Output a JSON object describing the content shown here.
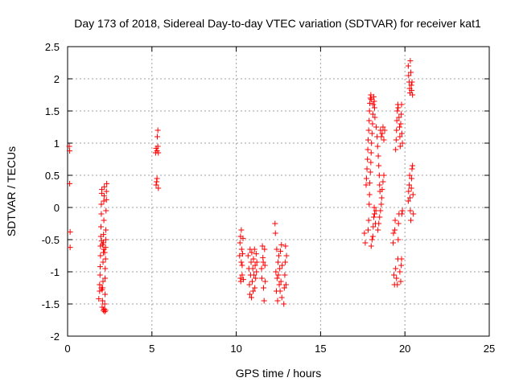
{
  "chart_data": {
    "type": "scatter",
    "title": "Day 173 of 2018, Sidereal Day-to-day VTEC variation (SDTVAR) for receiver kat1",
    "xlabel": "GPS time / hours",
    "ylabel": "SDTVAR / TECUs",
    "xlim": [
      0,
      25
    ],
    "ylim": [
      -2,
      2.5
    ],
    "x_ticks": [
      "0",
      "5",
      "10",
      "15",
      "20",
      "25"
    ],
    "y_ticks": [
      "-2",
      "-1.5",
      "-1",
      "-0.5",
      "0",
      "0.5",
      "1",
      "1.5",
      "2",
      "2.5"
    ],
    "grid": true,
    "marker": "plus",
    "color": "#ff0000",
    "series": [
      {
        "name": "SDTVAR",
        "points": [
          [
            0.1,
            0.95
          ],
          [
            0.12,
            0.88
          ],
          [
            0.12,
            0.37
          ],
          [
            0.15,
            -0.38
          ],
          [
            0.15,
            -0.62
          ],
          [
            1.85,
            -1.42
          ],
          [
            1.9,
            -1.3
          ],
          [
            1.9,
            -1.2
          ],
          [
            1.92,
            -1.05
          ],
          [
            1.93,
            -0.92
          ],
          [
            1.95,
            -0.75
          ],
          [
            1.95,
            -0.6
          ],
          [
            1.97,
            -0.45
          ],
          [
            1.98,
            -0.3
          ],
          [
            2.0,
            -0.1
          ],
          [
            2.0,
            0.05
          ],
          [
            2.02,
            0.22
          ],
          [
            2.03,
            0.28
          ],
          [
            2.05,
            -1.55
          ],
          [
            2.07,
            -1.45
          ],
          [
            2.08,
            -1.25
          ],
          [
            2.1,
            -1.15
          ],
          [
            2.1,
            -0.85
          ],
          [
            2.12,
            -0.7
          ],
          [
            2.12,
            -0.55
          ],
          [
            2.13,
            -0.42
          ],
          [
            2.15,
            -0.2
          ],
          [
            2.15,
            0.1
          ],
          [
            2.17,
            0.18
          ],
          [
            2.18,
            0.32
          ],
          [
            2.2,
            -1.62
          ],
          [
            2.2,
            -1.5
          ],
          [
            2.22,
            -1.35
          ],
          [
            2.22,
            -1.1
          ],
          [
            2.23,
            -0.95
          ],
          [
            2.25,
            -0.8
          ],
          [
            2.25,
            -0.62
          ],
          [
            2.27,
            -0.5
          ],
          [
            2.27,
            -0.35
          ],
          [
            2.28,
            -0.05
          ],
          [
            2.3,
            0.12
          ],
          [
            2.3,
            0.25
          ],
          [
            2.32,
            0.37
          ],
          [
            2.12,
            -1.6
          ],
          [
            2.18,
            -1.58
          ],
          [
            2.25,
            -1.6
          ],
          [
            2.02,
            -0.52
          ],
          [
            2.08,
            -0.58
          ],
          [
            2.15,
            -0.65
          ],
          [
            2.2,
            -0.7
          ],
          [
            2.0,
            -1.25
          ],
          [
            2.05,
            -1.28
          ],
          [
            5.22,
            0.85
          ],
          [
            5.25,
            0.92
          ],
          [
            5.25,
            0.35
          ],
          [
            5.28,
            0.4
          ],
          [
            5.3,
            0.88
          ],
          [
            5.3,
            0.45
          ],
          [
            5.32,
            1.1
          ],
          [
            5.35,
            1.2
          ],
          [
            5.35,
            0.95
          ],
          [
            5.38,
            0.3
          ],
          [
            5.38,
            0.85
          ],
          [
            10.2,
            -0.75
          ],
          [
            10.22,
            -0.55
          ],
          [
            10.25,
            -0.45
          ],
          [
            10.25,
            -1.1
          ],
          [
            10.27,
            -1.15
          ],
          [
            10.3,
            -0.85
          ],
          [
            10.3,
            -0.35
          ],
          [
            10.32,
            -0.65
          ],
          [
            10.35,
            -0.9
          ],
          [
            10.35,
            -1.05
          ],
          [
            10.38,
            -0.72
          ],
          [
            10.4,
            -0.48
          ],
          [
            10.42,
            -1.12
          ],
          [
            10.7,
            -0.75
          ],
          [
            10.75,
            -0.95
          ],
          [
            10.78,
            -1.2
          ],
          [
            10.8,
            -1.35
          ],
          [
            10.82,
            -0.65
          ],
          [
            10.85,
            -1.05
          ],
          [
            10.88,
            -0.85
          ],
          [
            10.9,
            -1.4
          ],
          [
            10.92,
            -0.7
          ],
          [
            10.95,
            -1.15
          ],
          [
            10.98,
            -0.95
          ],
          [
            11.0,
            -1.3
          ],
          [
            11.02,
            -0.8
          ],
          [
            11.05,
            -1.05
          ],
          [
            11.08,
            -0.65
          ],
          [
            11.1,
            -1.25
          ],
          [
            11.12,
            -0.9
          ],
          [
            11.15,
            -1.1
          ],
          [
            11.18,
            -0.72
          ],
          [
            11.2,
            -1.0
          ],
          [
            11.22,
            -0.85
          ],
          [
            11.5,
            -0.95
          ],
          [
            11.52,
            -1.1
          ],
          [
            11.55,
            -0.6
          ],
          [
            11.58,
            -0.78
          ],
          [
            11.6,
            -0.85
          ],
          [
            11.62,
            -1.25
          ],
          [
            11.65,
            -1.45
          ],
          [
            11.68,
            -0.65
          ],
          [
            11.7,
            -0.9
          ],
          [
            11.72,
            -1.15
          ],
          [
            12.3,
            -0.25
          ],
          [
            12.32,
            -0.4
          ],
          [
            12.35,
            -1.0
          ],
          [
            12.38,
            -1.3
          ],
          [
            12.4,
            -0.65
          ],
          [
            12.42,
            -1.1
          ],
          [
            12.45,
            -1.45
          ],
          [
            12.48,
            -0.85
          ],
          [
            12.5,
            -1.05
          ],
          [
            12.52,
            -0.75
          ],
          [
            12.55,
            -1.2
          ],
          [
            12.58,
            -0.95
          ],
          [
            12.6,
            -1.3
          ],
          [
            12.62,
            -0.68
          ],
          [
            12.65,
            -1.15
          ],
          [
            12.68,
            -0.58
          ],
          [
            12.7,
            -1.4
          ],
          [
            12.72,
            -0.9
          ],
          [
            12.82,
            -1.5
          ],
          [
            12.85,
            -1.25
          ],
          [
            12.88,
            -1.05
          ],
          [
            12.9,
            -0.85
          ],
          [
            12.92,
            -0.6
          ],
          [
            12.95,
            -1.2
          ],
          [
            12.98,
            -0.75
          ],
          [
            17.6,
            -0.4
          ],
          [
            17.65,
            -0.55
          ],
          [
            17.7,
            0.35
          ],
          [
            17.72,
            0.45
          ],
          [
            17.75,
            0.6
          ],
          [
            17.78,
            0.75
          ],
          [
            17.8,
            0.9
          ],
          [
            17.82,
            1.05
          ],
          [
            17.85,
            1.2
          ],
          [
            17.88,
            1.35
          ],
          [
            17.9,
            1.5
          ],
          [
            17.92,
            1.62
          ],
          [
            17.95,
            1.7
          ],
          [
            17.98,
            1.75
          ],
          [
            18.0,
            1.68
          ],
          [
            17.82,
            -0.35
          ],
          [
            17.85,
            -0.2
          ],
          [
            17.88,
            0.05
          ],
          [
            17.9,
            0.2
          ],
          [
            17.92,
            0.38
          ],
          [
            17.95,
            0.55
          ],
          [
            17.98,
            0.7
          ],
          [
            18.0,
            0.85
          ],
          [
            18.02,
            1.0
          ],
          [
            18.05,
            1.15
          ],
          [
            18.08,
            1.3
          ],
          [
            18.1,
            1.45
          ],
          [
            18.12,
            1.6
          ],
          [
            18.15,
            1.72
          ],
          [
            18.18,
            1.65
          ],
          [
            18.2,
            1.55
          ],
          [
            18.22,
            1.4
          ],
          [
            18.0,
            -0.6
          ],
          [
            18.05,
            -0.5
          ],
          [
            18.1,
            -0.45
          ],
          [
            18.12,
            -0.3
          ],
          [
            18.15,
            -0.15
          ],
          [
            18.18,
            0.0
          ],
          [
            18.2,
            -0.1
          ],
          [
            18.25,
            -0.25
          ],
          [
            18.28,
            -0.05
          ],
          [
            18.3,
            1.25
          ],
          [
            18.35,
            1.1
          ],
          [
            18.38,
            0.95
          ],
          [
            18.42,
            0.8
          ],
          [
            18.45,
            0.65
          ],
          [
            18.48,
            0.5
          ],
          [
            18.5,
            0.35
          ],
          [
            18.52,
            0.25
          ],
          [
            18.4,
            -0.35
          ],
          [
            18.45,
            -0.25
          ],
          [
            18.5,
            -0.15
          ],
          [
            18.55,
            -0.05
          ],
          [
            18.6,
            0.05
          ],
          [
            18.62,
            0.15
          ],
          [
            18.65,
            0.28
          ],
          [
            18.7,
            0.4
          ],
          [
            18.75,
            0.5
          ],
          [
            18.55,
            1.2
          ],
          [
            18.6,
            1.1
          ],
          [
            18.65,
            1.15
          ],
          [
            18.7,
            1.25
          ],
          [
            18.75,
            1.05
          ],
          [
            18.8,
            1.2
          ],
          [
            19.3,
            -0.55
          ],
          [
            19.32,
            -0.4
          ],
          [
            19.35,
            -1.05
          ],
          [
            19.38,
            -1.2
          ],
          [
            19.4,
            -0.35
          ],
          [
            19.42,
            -0.2
          ],
          [
            19.45,
            0.9
          ],
          [
            19.48,
            1.05
          ],
          [
            19.5,
            1.2
          ],
          [
            19.52,
            1.35
          ],
          [
            19.55,
            1.5
          ],
          [
            19.58,
            1.6
          ],
          [
            19.45,
            -0.95
          ],
          [
            19.5,
            -1.1
          ],
          [
            19.55,
            -1.2
          ],
          [
            19.58,
            -0.8
          ],
          [
            19.6,
            -0.5
          ],
          [
            19.62,
            -0.25
          ],
          [
            19.65,
            -0.1
          ],
          [
            19.6,
            1.55
          ],
          [
            19.65,
            1.4
          ],
          [
            19.68,
            1.25
          ],
          [
            19.7,
            1.1
          ],
          [
            19.72,
            0.95
          ],
          [
            19.75,
            1.3
          ],
          [
            19.78,
            1.45
          ],
          [
            19.8,
            1.6
          ],
          [
            19.82,
            1.15
          ],
          [
            19.85,
            1.0
          ],
          [
            19.7,
            -1.0
          ],
          [
            19.75,
            -1.15
          ],
          [
            19.78,
            -0.9
          ],
          [
            19.8,
            -0.8
          ],
          [
            19.82,
            -0.1
          ],
          [
            19.85,
            -0.05
          ],
          [
            20.2,
            2.2
          ],
          [
            20.22,
            2.05
          ],
          [
            20.25,
            1.95
          ],
          [
            20.28,
            1.85
          ],
          [
            20.3,
            1.78
          ],
          [
            20.32,
            2.28
          ],
          [
            20.35,
            2.1
          ],
          [
            20.38,
            1.9
          ],
          [
            20.4,
            1.82
          ],
          [
            20.42,
            1.95
          ],
          [
            20.45,
            1.75
          ],
          [
            20.2,
            0.1
          ],
          [
            20.22,
            0.25
          ],
          [
            20.25,
            0.35
          ],
          [
            20.28,
            0.5
          ],
          [
            20.3,
            0.15
          ],
          [
            20.32,
            -0.05
          ],
          [
            20.35,
            -0.2
          ],
          [
            20.38,
            0.3
          ],
          [
            20.4,
            0.45
          ],
          [
            20.42,
            0.6
          ],
          [
            20.45,
            0.65
          ],
          [
            20.48,
            0.2
          ],
          [
            20.5,
            -0.1
          ]
        ]
      }
    ]
  }
}
